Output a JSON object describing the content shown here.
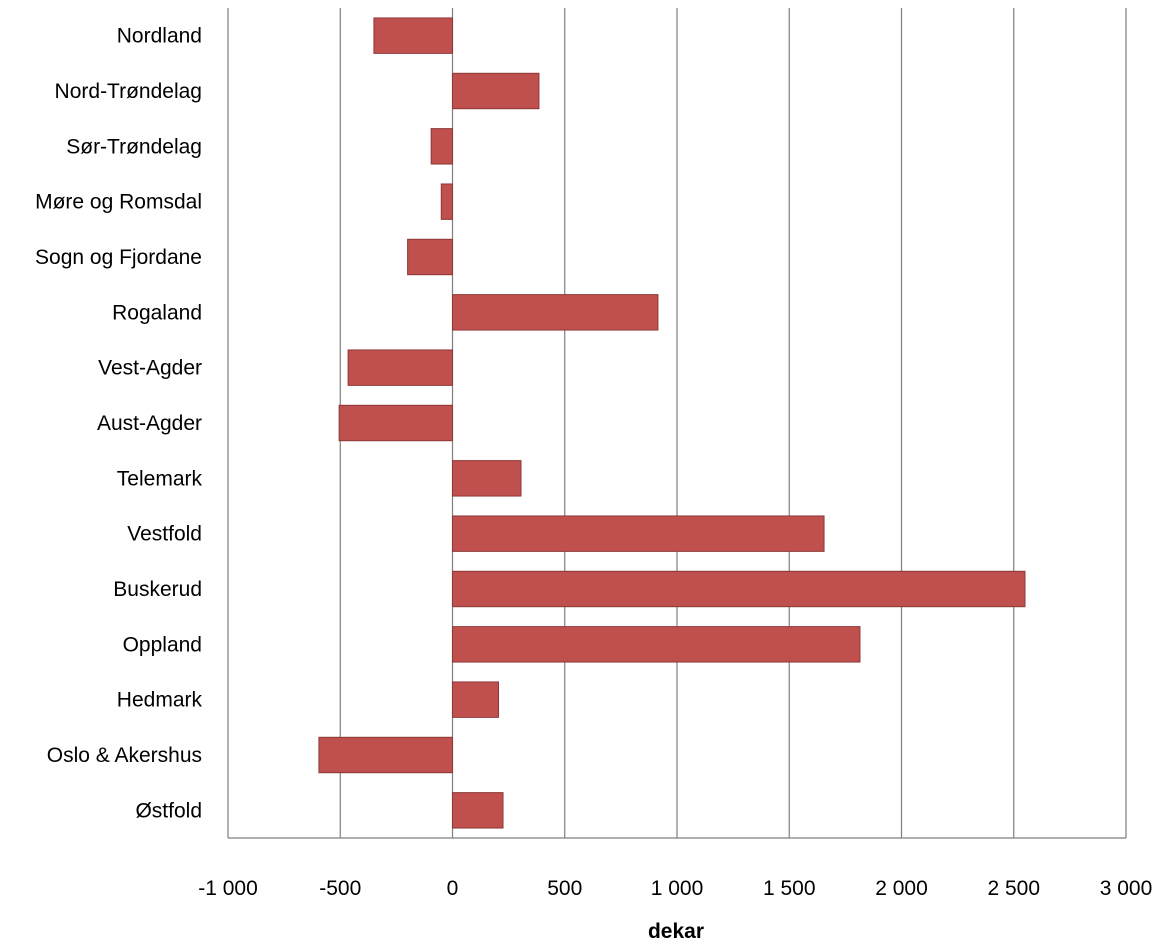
{
  "chart_data": {
    "type": "bar",
    "orientation": "horizontal",
    "title": "",
    "xlabel": "dekar",
    "ylabel": "",
    "xlim": [
      -1000,
      3000
    ],
    "x_ticks": [
      -1000,
      -500,
      0,
      500,
      1000,
      1500,
      2000,
      2500,
      3000
    ],
    "x_tick_labels": [
      "-1 000",
      "-500",
      "0",
      "500",
      "1 000",
      "1 500",
      "2 000",
      "2 500",
      "3 000"
    ],
    "grid": "vertical",
    "legend": "none",
    "categories": [
      "Nordland",
      "Nord-Trøndelag",
      "Sør-Trøndelag",
      "Møre og Romsdal",
      "Sogn og Fjordane",
      "Rogaland",
      "Vest-Agder",
      "Aust-Agder",
      "Telemark",
      "Vestfold",
      "Buskerud",
      "Oppland",
      "Hedmark",
      "Oslo & Akershus",
      "Østfold"
    ],
    "values": [
      -350,
      385,
      -95,
      -50,
      -200,
      915,
      -465,
      -505,
      305,
      1655,
      2550,
      1815,
      205,
      -595,
      225
    ],
    "colors": {
      "bar_fill": "#c0504d",
      "bar_stroke": "#8c3836",
      "gridline": "#7f7f7f",
      "axis": "#7f7f7f"
    }
  }
}
